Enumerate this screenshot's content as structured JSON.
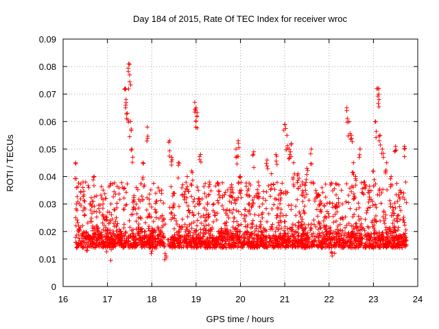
{
  "chart_data": {
    "type": "scatter",
    "title": "Day 184 of 2015, Rate Of TEC Index for receiver wroc",
    "xlabel": "GPS time / hours",
    "ylabel": "ROTI / TECUs",
    "xlim": [
      16,
      24
    ],
    "ylim": [
      0,
      0.09
    ],
    "xticks": [
      "16",
      "17",
      "18",
      "19",
      "20",
      "21",
      "22",
      "23",
      "24"
    ],
    "yticks": [
      "0",
      "0.01",
      "0.02",
      "0.03",
      "0.04",
      "0.05",
      "0.06",
      "0.07",
      "0.08",
      "0.09"
    ],
    "grid": true,
    "marker": "+",
    "color": "#ff0000",
    "series": [
      {
        "name": "ROTI",
        "x": [
          16.28,
          16.3,
          16.35,
          16.45,
          16.55,
          16.62,
          16.7,
          16.8,
          16.9,
          17.0,
          17.05,
          17.1,
          17.2,
          17.3,
          17.4,
          17.42,
          17.45,
          17.48,
          17.5,
          17.52,
          17.55,
          17.6,
          17.7,
          17.8,
          17.85,
          17.9,
          17.95,
          18.0,
          18.1,
          18.2,
          18.3,
          18.4,
          18.45,
          18.5,
          18.6,
          18.7,
          18.8,
          18.9,
          18.97,
          19.0,
          19.02,
          19.05,
          19.1,
          19.2,
          19.3,
          19.4,
          19.5,
          19.6,
          19.7,
          19.8,
          19.9,
          19.95,
          20.0,
          20.1,
          20.2,
          20.3,
          20.4,
          20.5,
          20.6,
          20.7,
          20.8,
          20.9,
          21.0,
          21.05,
          21.1,
          21.15,
          21.2,
          21.3,
          21.4,
          21.5,
          21.6,
          21.7,
          21.8,
          21.9,
          22.0,
          22.05,
          22.1,
          22.2,
          22.3,
          22.4,
          22.45,
          22.5,
          22.55,
          22.6,
          22.7,
          22.8,
          22.9,
          23.0,
          23.05,
          23.1,
          23.12,
          23.15,
          23.2,
          23.3,
          23.4,
          23.5,
          23.6,
          23.7
        ],
        "y": [
          0.045,
          0.03,
          0.022,
          0.038,
          0.018,
          0.03,
          0.04,
          0.02,
          0.03,
          0.018,
          0.027,
          0.015,
          0.025,
          0.02,
          0.072,
          0.068,
          0.063,
          0.081,
          0.077,
          0.06,
          0.05,
          0.033,
          0.025,
          0.045,
          0.02,
          0.058,
          0.03,
          0.015,
          0.031,
          0.02,
          0.012,
          0.053,
          0.047,
          0.03,
          0.045,
          0.037,
          0.04,
          0.042,
          0.067,
          0.065,
          0.062,
          0.035,
          0.048,
          0.025,
          0.038,
          0.03,
          0.02,
          0.033,
          0.028,
          0.037,
          0.05,
          0.053,
          0.04,
          0.028,
          0.033,
          0.049,
          0.038,
          0.03,
          0.046,
          0.041,
          0.048,
          0.035,
          0.059,
          0.055,
          0.05,
          0.052,
          0.045,
          0.041,
          0.038,
          0.043,
          0.05,
          0.035,
          0.03,
          0.025,
          0.02,
          0.015,
          0.018,
          0.022,
          0.03,
          0.065,
          0.06,
          0.055,
          0.045,
          0.04,
          0.05,
          0.038,
          0.035,
          0.042,
          0.06,
          0.072,
          0.07,
          0.055,
          0.05,
          0.045,
          0.04,
          0.051,
          0.035,
          0.051
        ],
        "note": "Dense band of readings between ~0.005 and ~0.03 TECUs across 16.3–23.75 h; gaps near 18.35 and 22.0 h."
      }
    ]
  }
}
